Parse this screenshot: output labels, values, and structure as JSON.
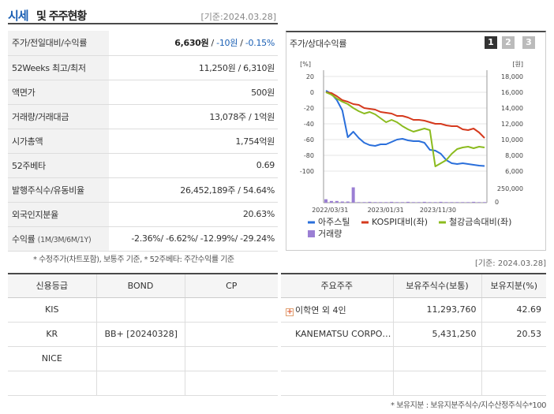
{
  "header": {
    "title_a": "시세",
    "title_b": "및 주주현황",
    "date": "[기준:2024.03.28]"
  },
  "info": {
    "price": {
      "label": "주가/전일대비/수익률",
      "price": "6,630원",
      "sep1": " / ",
      "change": "-10원",
      "sep2": " / ",
      "rate": "-0.15%"
    },
    "w52": {
      "label": "52Weeks 최고/최저",
      "value": "11,250원 / 6,310원"
    },
    "par": {
      "label": "액면가",
      "value": "500원"
    },
    "volume": {
      "label": "거래량/거래대금",
      "value": "13,078주 / 1억원"
    },
    "mcap": {
      "label": "시가총액",
      "value": "1,754억원"
    },
    "beta": {
      "label": "52주베타",
      "value": "0.69"
    },
    "shares": {
      "label": "발행주식수/유동비율",
      "value": "26,452,189주 / 54.64%"
    },
    "foreign": {
      "label": "외국인지분율",
      "value": "20.63%"
    },
    "returns": {
      "label": "수익률",
      "label_sub": "(1M/3M/6M/1Y)",
      "value": "-2.36%/ -6.62%/ -12.99%/ -29.24%"
    }
  },
  "note_left": "* 수정주가(차트포함), 보통주 기준, * 52주베타: 주간수익률 기준",
  "note_right": "[기준: 2024.03.28]",
  "chart_box": {
    "title": "주가/상대수익률",
    "pages": [
      "1",
      "2",
      "3"
    ]
  },
  "chart_data": {
    "type": "line",
    "x_ticks": [
      "2022/03/31",
      "2023/01/31",
      "2023/11/30"
    ],
    "y_left_unit": "[%]",
    "y_left_ticks": [
      20,
      0,
      -20,
      -40,
      -60,
      -80,
      -100
    ],
    "y_left_range": [
      -100,
      20
    ],
    "y_right_unit": "[원]",
    "y_right_ticks": [
      "18,000",
      "16,000",
      "14,000",
      "12,000",
      "10,000",
      "8,000",
      "6,000"
    ],
    "y_right_range": [
      6000,
      18000
    ],
    "vol_ticks": [
      "250,000",
      "0"
    ],
    "vol_range": [
      0,
      250000
    ],
    "series": [
      {
        "name": "아주스틸",
        "color": "#2a6fdb",
        "axis": "right",
        "values": [
          16200,
          15800,
          15000,
          13700,
          10300,
          11000,
          10200,
          9600,
          9300,
          9200,
          9400,
          9400,
          9700,
          10000,
          10100,
          9900,
          9800,
          9800,
          9600,
          8700,
          8600,
          8200,
          7400,
          7000,
          6900,
          7000,
          6900,
          6800,
          6700,
          6650
        ]
      },
      {
        "name": "KOSPI대비(좌)",
        "color": "#d53a1e",
        "axis": "left",
        "values": [
          0,
          -1,
          -5,
          -10,
          -12,
          -15,
          -16,
          -20,
          -21,
          -22,
          -25,
          -26,
          -27,
          -30,
          -30,
          -32,
          -35,
          -35,
          -36,
          -38,
          -40,
          -40,
          -42,
          -43,
          -43,
          -47,
          -48,
          -46,
          -51,
          -58
        ]
      },
      {
        "name": "철강금속대비(좌)",
        "color": "#8bbb1e",
        "axis": "left",
        "values": [
          0,
          -3,
          -8,
          -12,
          -15,
          -20,
          -24,
          -27,
          -25,
          -28,
          -33,
          -38,
          -35,
          -38,
          -43,
          -47,
          -50,
          -48,
          -46,
          -48,
          -94,
          -90,
          -86,
          -78,
          -72,
          -70,
          -69,
          -71,
          -69,
          -70
        ]
      },
      {
        "name": "거래량",
        "color": "#9b7fd4",
        "axis": "vol",
        "values": [
          60000,
          30000,
          30000,
          20000,
          20000,
          270000,
          10000,
          10000,
          15000,
          10000,
          10000,
          10000,
          15000,
          10000,
          10000,
          15000,
          10000,
          10000,
          15000,
          10000,
          10000,
          15000,
          10000,
          10000,
          10000,
          10000,
          10000,
          15000,
          10000,
          10000
        ]
      }
    ],
    "legend": "bottom"
  },
  "credit": {
    "headers": [
      "신용등급",
      "BOND",
      "CP"
    ],
    "rows": [
      {
        "agency": "KIS",
        "bond": "",
        "cp": ""
      },
      {
        "agency": "KR",
        "bond": "BB+  [20240328]",
        "cp": ""
      },
      {
        "agency": "NICE",
        "bond": "",
        "cp": ""
      },
      {
        "agency": "",
        "bond": "",
        "cp": ""
      }
    ]
  },
  "holders": {
    "headers": [
      "주요주주",
      "보유주식수(보통)",
      "보유지분(%)"
    ],
    "rows": [
      {
        "name": "이학연 외 4인",
        "shares": "11,293,760",
        "pct": "42.69"
      },
      {
        "name": "KANEMATSU CORPO…",
        "shares": "5,431,250",
        "pct": "20.53"
      },
      {
        "name": "",
        "shares": "",
        "pct": ""
      },
      {
        "name": "",
        "shares": "",
        "pct": ""
      }
    ]
  },
  "note_bottom": "* 보유지분 : 보유지분주식수/지수산정주식수*100"
}
